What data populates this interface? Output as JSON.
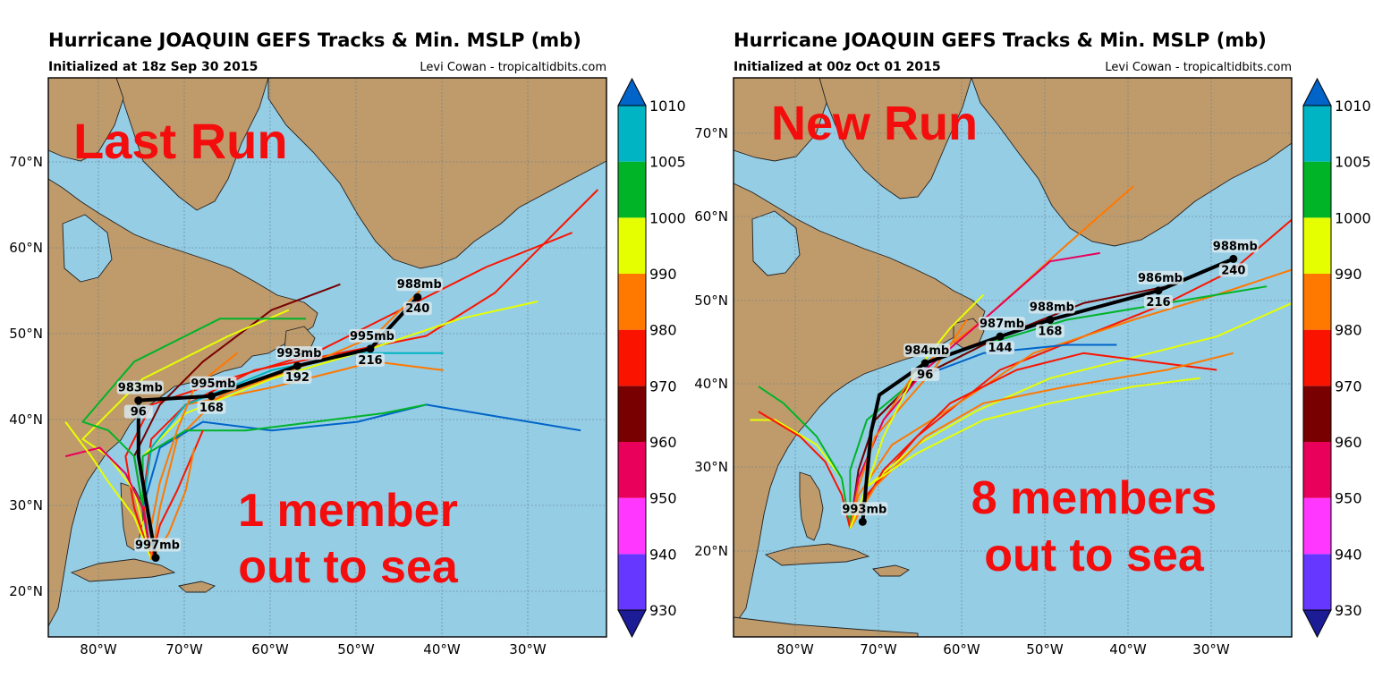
{
  "colorbar": {
    "levels": [
      "930",
      "940",
      "950",
      "960",
      "970",
      "980",
      "990",
      "1000",
      "1005",
      "1010"
    ],
    "colors": [
      "#1c1c96",
      "#6637ff",
      "#ff37ff",
      "#e8005a",
      "#780000",
      "#fa1400",
      "#ff7800",
      "#e6ff00",
      "#00b428",
      "#00b4c3",
      "#0064c8"
    ]
  },
  "map": {
    "ocean_color": "#95cde5",
    "land_color": "#bf9b6c",
    "grid": true
  },
  "panels": [
    {
      "title": "Hurricane JOAQUIN GEFS Tracks & Min. MSLP (mb)",
      "subtitle": "Initialized at 18z Sep 30 2015",
      "credit": "Levi Cowan - tropicaltidbits.com",
      "overlay_heading": "Last Run",
      "overlay_note_line1": "1 member",
      "overlay_note_line2": "out to sea",
      "lat_labels": [
        "70°N",
        "60°N",
        "50°N",
        "40°N",
        "30°N",
        "20°N"
      ],
      "lon_labels": [
        "80°W",
        "70°W",
        "60°W",
        "50°W",
        "40°W",
        "30°W"
      ],
      "mean_track": [
        {
          "label": "997mb",
          "hour": ""
        },
        {
          "label": "983mb",
          "hour": "96"
        },
        {
          "label": "995mb",
          "hour": "168"
        },
        {
          "label": "993mb",
          "hour": "192"
        },
        {
          "label": "995mb",
          "hour": "216"
        },
        {
          "label": "988mb",
          "hour": "240"
        }
      ]
    },
    {
      "title": "Hurricane JOAQUIN GEFS Tracks & Min. MSLP (mb)",
      "subtitle": "Initialized at 00z Oct 01 2015",
      "credit": "Levi Cowan - tropicaltidbits.com",
      "overlay_heading": "New Run",
      "overlay_note_line1": "8 members",
      "overlay_note_line2": "out to sea",
      "lat_labels": [
        "70°N",
        "60°N",
        "50°N",
        "40°N",
        "30°N",
        "20°N"
      ],
      "lon_labels": [
        "80°W",
        "70°W",
        "60°W",
        "50°W",
        "40°W",
        "30°W"
      ],
      "mean_track": [
        {
          "label": "993mb",
          "hour": ""
        },
        {
          "label": "984mb",
          "hour": "96"
        },
        {
          "label": "987mb",
          "hour": "144"
        },
        {
          "label": "988mb",
          "hour": "168"
        },
        {
          "label": "986mb",
          "hour": "216"
        },
        {
          "label": "988mb",
          "hour": "240"
        }
      ]
    }
  ],
  "chart_data": [
    {
      "type": "line",
      "title": "Hurricane JOAQUIN GEFS Tracks & Min. MSLP (mb)",
      "subtitle": "Initialized at 18z Sep 30 2015",
      "xlim": [
        -86,
        -21
      ],
      "ylim": [
        15,
        80
      ],
      "x_ticks": [
        -80,
        -70,
        -60,
        -50,
        -40,
        -30
      ],
      "y_ticks": [
        20,
        30,
        40,
        50,
        60,
        70
      ],
      "mean_track": {
        "x": [
          -73.5,
          -75.5,
          -75.5,
          -67.0,
          -57.0,
          -48.5,
          -43.0
        ],
        "y": [
          24.2,
          36.0,
          42.5,
          43.0,
          46.5,
          48.5,
          54.5
        ],
        "mslp_labels": [
          "997mb",
          "983mb",
          "995mb",
          "993mb",
          "995mb",
          "988mb"
        ]
      },
      "members": [
        {
          "color": "#fa1400",
          "x": [
            -74,
            -76,
            -77,
            -74,
            -65,
            -55,
            -45,
            -35,
            -25
          ],
          "y": [
            24,
            30,
            36,
            42,
            45,
            48,
            53,
            58,
            62
          ]
        },
        {
          "color": "#fa1400",
          "x": [
            -74,
            -75,
            -74,
            -70,
            -62,
            -52,
            -42,
            -34,
            -22
          ],
          "y": [
            24,
            31,
            38,
            42,
            46,
            48,
            50,
            55,
            67
          ]
        },
        {
          "color": "#780000",
          "x": [
            -74,
            -75,
            -76,
            -73,
            -68,
            -60,
            -52
          ],
          "y": [
            24,
            30,
            36,
            42,
            47,
            53,
            56
          ]
        },
        {
          "color": "#ff7800",
          "x": [
            -74,
            -75,
            -74,
            -70,
            -60,
            -48,
            -40
          ],
          "y": [
            24,
            30,
            37,
            42,
            44,
            47,
            46
          ]
        },
        {
          "color": "#ff7800",
          "x": [
            -74,
            -73,
            -71,
            -66,
            -55,
            -48,
            -42
          ],
          "y": [
            24,
            30,
            38,
            43,
            47,
            50,
            56
          ]
        },
        {
          "color": "#e6ff00",
          "x": [
            -74,
            -75,
            -75,
            -70,
            -60,
            -50,
            -38,
            -29
          ],
          "y": [
            24,
            30,
            36,
            41,
            45,
            48,
            52,
            54
          ]
        },
        {
          "color": "#e6ff00",
          "x": [
            -74,
            -76,
            -79,
            -82,
            -75,
            -65,
            -58
          ],
          "y": [
            24,
            32,
            36,
            38,
            45,
            50,
            53
          ]
        },
        {
          "color": "#00b428",
          "x": [
            -74,
            -75,
            -76,
            -79,
            -82,
            -76,
            -66,
            -56
          ],
          "y": [
            24,
            30,
            36,
            39,
            40,
            47,
            52,
            52
          ]
        },
        {
          "color": "#00b4c3",
          "x": [
            -74,
            -75,
            -74,
            -70,
            -60,
            -50,
            -40
          ],
          "y": [
            24,
            30,
            37,
            42,
            46,
            48,
            48
          ]
        },
        {
          "color": "#0064c8",
          "x": [
            -74,
            -75,
            -73,
            -68,
            -60,
            -50,
            -42,
            -36,
            -24
          ],
          "y": [
            24,
            30,
            37,
            40,
            39,
            40,
            42,
            41,
            39
          ]
        },
        {
          "color": "#00b428",
          "x": [
            -74,
            -75,
            -75,
            -70,
            -63,
            -55,
            -47,
            -42
          ],
          "y": [
            24,
            30,
            36,
            39,
            39,
            40,
            41,
            42
          ]
        },
        {
          "color": "#fa1400",
          "x": [
            -74,
            -73,
            -71,
            -68
          ],
          "y": [
            24,
            28,
            32,
            39
          ]
        },
        {
          "color": "#ff7800",
          "x": [
            -74,
            -72,
            -70,
            -69
          ],
          "y": [
            24,
            27,
            32,
            37
          ]
        },
        {
          "color": "#e8005a",
          "x": [
            -74,
            -75,
            -77,
            -80,
            -84
          ],
          "y": [
            24,
            30,
            34,
            37,
            36
          ]
        },
        {
          "color": "#e6ff00",
          "x": [
            -74,
            -76,
            -79,
            -81,
            -84
          ],
          "y": [
            24,
            29,
            33,
            36,
            40
          ]
        },
        {
          "color": "#ff7800",
          "x": [
            -74,
            -74,
            -73,
            -71,
            -69,
            -64
          ],
          "y": [
            24,
            28,
            33,
            39,
            44,
            48
          ]
        }
      ]
    },
    {
      "type": "line",
      "title": "Hurricane JOAQUIN GEFS Tracks & Min. MSLP (mb)",
      "subtitle": "Initialized at 00z Oct 01 2015",
      "xlim": [
        -88,
        -21
      ],
      "ylim": [
        10,
        77
      ],
      "x_ticks": [
        -80,
        -70,
        -60,
        -50,
        -40,
        -30
      ],
      "y_ticks": [
        20,
        30,
        40,
        50,
        60,
        70
      ],
      "mean_track": {
        "x": [
          -72.5,
          -71.5,
          -70.5,
          -65.0,
          -56.0,
          -50.0,
          -37.0,
          -28.0
        ],
        "y": [
          23.8,
          34.5,
          39.0,
          42.8,
          46.0,
          48.0,
          51.5,
          55.3
        ],
        "mslp_labels": [
          "993mb",
          "984mb",
          "987mb",
          "988mb",
          "986mb",
          "988mb"
        ]
      },
      "members": [
        {
          "color": "#fa1400",
          "x": [
            -74,
            -72,
            -66,
            -56,
            -46,
            -36,
            -28,
            -21
          ],
          "y": [
            23,
            27,
            34,
            42,
            46,
            50,
            54,
            60
          ]
        },
        {
          "color": "#ff7800",
          "x": [
            -74,
            -73,
            -69,
            -61,
            -52,
            -40,
            -30,
            -21
          ],
          "y": [
            23,
            27,
            33,
            38,
            44,
            48,
            51,
            54
          ]
        },
        {
          "color": "#e6ff00",
          "x": [
            -74,
            -72,
            -66,
            -59,
            -50,
            -38,
            -30,
            -21
          ],
          "y": [
            23,
            28,
            33,
            37,
            41,
            44,
            46,
            50
          ]
        },
        {
          "color": "#fa1400",
          "x": [
            -74,
            -70,
            -62,
            -54,
            -46,
            -38,
            -30
          ],
          "y": [
            23,
            30,
            38,
            42,
            44,
            43,
            42
          ]
        },
        {
          "color": "#ff7800",
          "x": [
            -74,
            -71,
            -65,
            -58,
            -48,
            -36,
            -28
          ],
          "y": [
            23,
            28,
            34,
            38,
            40,
            42,
            44
          ]
        },
        {
          "color": "#e6ff00",
          "x": [
            -74,
            -72,
            -66,
            -58,
            -50,
            -40,
            -32
          ],
          "y": [
            23,
            28,
            32,
            36,
            38,
            40,
            41
          ]
        },
        {
          "color": "#00b428",
          "x": [
            -74,
            -74,
            -72,
            -66,
            -58,
            -48,
            -36,
            -24
          ],
          "y": [
            23,
            30,
            36,
            41,
            45,
            48,
            50,
            52
          ]
        },
        {
          "color": "#0064c8",
          "x": [
            -74,
            -73,
            -71,
            -66,
            -58,
            -48,
            -42
          ],
          "y": [
            23,
            30,
            36,
            41,
            44,
            45,
            45
          ]
        },
        {
          "color": "#780000",
          "x": [
            -74,
            -73,
            -71,
            -66,
            -56,
            -46,
            -36
          ],
          "y": [
            23,
            30,
            36,
            41,
            46,
            50,
            52
          ]
        },
        {
          "color": "#ff7800",
          "x": [
            -74,
            -73,
            -70,
            -66,
            -58,
            -48,
            -40
          ],
          "y": [
            23,
            29,
            36,
            42,
            48,
            57,
            64
          ]
        },
        {
          "color": "#e8005a",
          "x": [
            -74,
            -73,
            -70,
            -65,
            -58,
            -50,
            -44
          ],
          "y": [
            23,
            29,
            36,
            42,
            48,
            55,
            56
          ]
        },
        {
          "color": "#e6ff00",
          "x": [
            -74,
            -75,
            -78,
            -83,
            -86
          ],
          "y": [
            23,
            29,
            33,
            36,
            36
          ]
        },
        {
          "color": "#00b428",
          "x": [
            -74,
            -75,
            -78,
            -82,
            -85
          ],
          "y": [
            23,
            29,
            34,
            38,
            40
          ]
        },
        {
          "color": "#fa1400",
          "x": [
            -74,
            -75,
            -77,
            -80,
            -85
          ],
          "y": [
            23,
            27,
            31,
            34,
            37
          ]
        },
        {
          "color": "#ff7800",
          "x": [
            -74,
            -73,
            -71,
            -64,
            -60
          ],
          "y": [
            23,
            28,
            34,
            42,
            48
          ]
        },
        {
          "color": "#e6ff00",
          "x": [
            -74,
            -72,
            -70,
            -66,
            -62,
            -58
          ],
          "y": [
            23,
            28,
            34,
            42,
            47,
            51
          ]
        }
      ]
    }
  ]
}
